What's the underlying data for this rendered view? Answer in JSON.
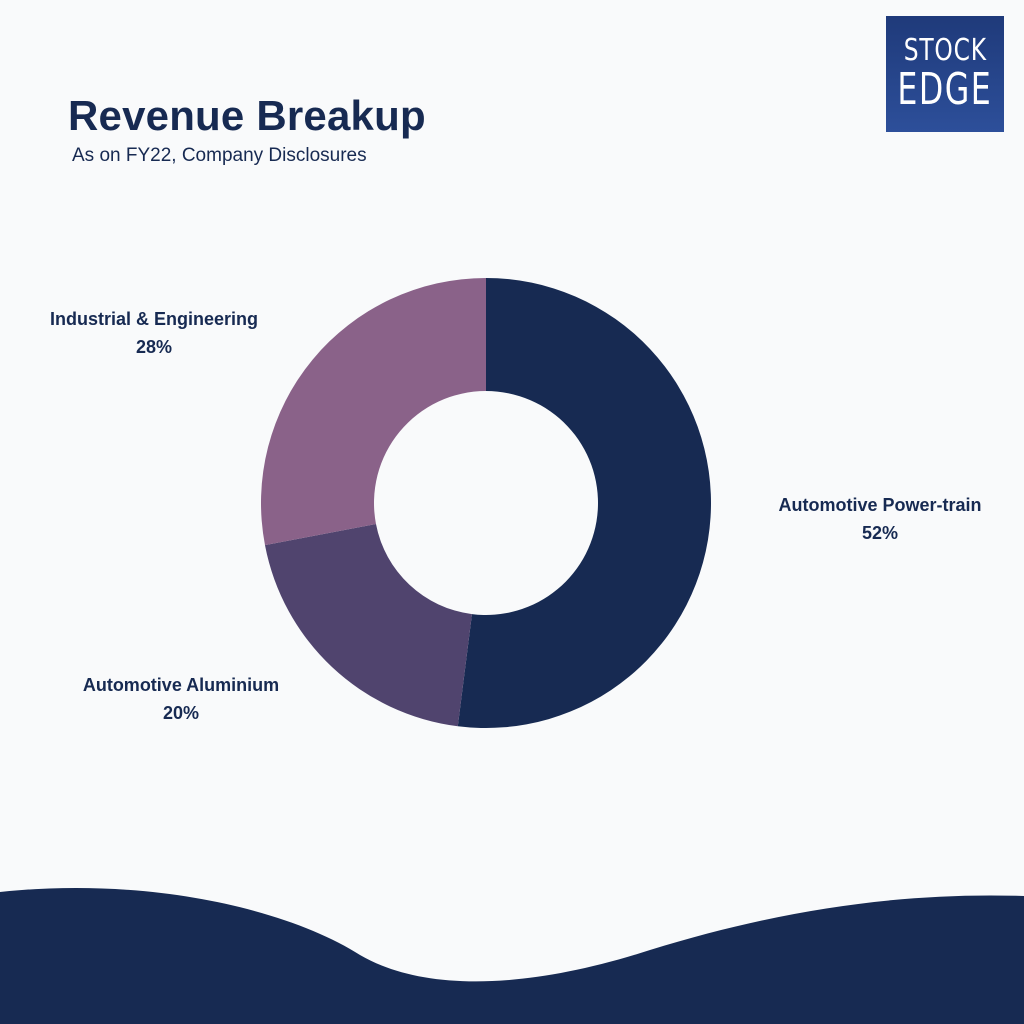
{
  "header": {
    "title": "Revenue Breakup",
    "subtitle": "As on FY22, Company Disclosures"
  },
  "logo": {
    "line1": "STOCK",
    "line2": "EDGE"
  },
  "colors": {
    "background": "#f9fafb",
    "text": "#172a52",
    "footer_wave": "#172a52",
    "logo": "#2a4a93"
  },
  "chart_data": {
    "type": "pie",
    "variant": "donut",
    "title": "Revenue Breakup",
    "subtitle": "As on FY22, Company Disclosures",
    "slices": [
      {
        "label": "Automotive Power-train",
        "value": 52,
        "value_label": "52%",
        "color": "#172a52"
      },
      {
        "label": "Automotive Aluminium",
        "value": 20,
        "value_label": "20%",
        "color": "#50446e"
      },
      {
        "label": "Industrial & Engineering",
        "value": 28,
        "value_label": "28%",
        "color": "#8a6289"
      }
    ],
    "start_angle": "12 o'clock",
    "direction": "clockwise",
    "legend": "none"
  }
}
